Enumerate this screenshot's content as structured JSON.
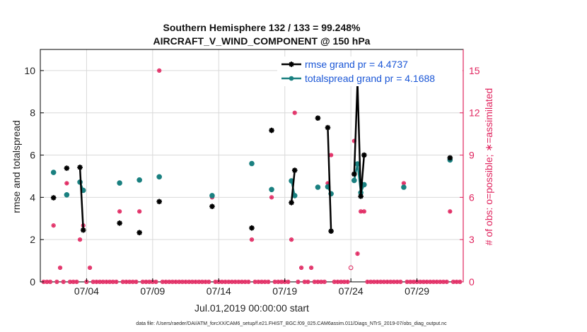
{
  "chart_data": {
    "type": "scatter",
    "title_line1": "Southern Hemisphere 132 / 133 = 99.248%",
    "title_line2": "AIRCRAFT_V_WIND_COMPONENT @ 150 hPa",
    "xlabel": "Jul.01,2019 00:00:00 start",
    "ylabel_left": "rmse and totalspread",
    "ylabel_right": "# of obs: o=possible; ∗=assimilated",
    "footnote": "data file: /Users/raeder/DAI/ATM_forcXX/CAM6_setup/f.e21.FHIST_BGC.f09_025.CAM6assim.011/Diags_NTrS_2019-07/obs_diag_output.nc",
    "x_range_days": [
      0,
      32
    ],
    "x_ticks": [
      {
        "day": 3.5,
        "label": "07/04"
      },
      {
        "day": 8.5,
        "label": "07/09"
      },
      {
        "day": 13.5,
        "label": "07/14"
      },
      {
        "day": 18.5,
        "label": "07/19"
      },
      {
        "day": 23.5,
        "label": "07/24"
      },
      {
        "day": 28.5,
        "label": "07/29"
      }
    ],
    "ylim_left": [
      0,
      11
    ],
    "yticks_left": [
      {
        "value": 0,
        "label": "0"
      },
      {
        "value": 2,
        "label": "2"
      },
      {
        "value": 4,
        "label": "4"
      },
      {
        "value": 6,
        "label": "6"
      },
      {
        "value": 8,
        "label": "8"
      },
      {
        "value": 10,
        "label": "10"
      }
    ],
    "ylim_right": [
      0,
      16.5
    ],
    "yticks_right": [
      {
        "value": 0,
        "label": "0"
      },
      {
        "value": 3,
        "label": "3"
      },
      {
        "value": 6,
        "label": "6"
      },
      {
        "value": 9,
        "label": "9"
      },
      {
        "value": 12,
        "label": "12"
      },
      {
        "value": 15,
        "label": "15"
      }
    ],
    "grid": true,
    "legend_position": "top-right",
    "colors": {
      "rmse": "#000000",
      "totalspread": "#1a8080",
      "obs": "#e0245e",
      "legend_text": "#1a56d6"
    },
    "series": [
      {
        "name": "rmse grand pr = 4.4737",
        "key": "rmse",
        "segments": [
          [
            [
              1.0,
              3.98
            ]
          ],
          [
            [
              2.0,
              5.38
            ]
          ],
          [
            [
              3.0,
              5.42
            ],
            [
              3.25,
              2.45
            ]
          ],
          [
            [
              6.0,
              2.78
            ]
          ],
          [
            [
              7.5,
              2.33
            ]
          ],
          [
            [
              9.0,
              3.8
            ]
          ],
          [
            [
              13.0,
              3.57
            ]
          ],
          [
            [
              16.0,
              2.55
            ]
          ],
          [
            [
              17.5,
              7.17
            ]
          ],
          [
            [
              19.0,
              3.75
            ],
            [
              19.25,
              5.28
            ]
          ],
          [
            [
              21.0,
              7.75
            ]
          ],
          [
            [
              21.75,
              7.3
            ],
            [
              22.0,
              2.4
            ]
          ],
          [
            [
              23.75,
              5.1
            ],
            [
              24.0,
              9.45
            ],
            [
              24.25,
              4.05
            ],
            [
              24.5,
              6.0
            ]
          ],
          [
            [
              31.0,
              5.87
            ]
          ]
        ]
      },
      {
        "name": "totalspread grand pr = 4.1688",
        "key": "totalspread",
        "segments": [
          [
            [
              1.0,
              5.18
            ]
          ],
          [
            [
              2.0,
              4.12
            ]
          ],
          [
            [
              3.0,
              4.72
            ],
            [
              3.25,
              4.33
            ]
          ],
          [
            [
              6.0,
              4.68
            ]
          ],
          [
            [
              7.5,
              4.82
            ]
          ],
          [
            [
              9.0,
              4.97
            ]
          ],
          [
            [
              13.0,
              4.08
            ]
          ],
          [
            [
              16.0,
              5.6
            ]
          ],
          [
            [
              17.5,
              4.37
            ]
          ],
          [
            [
              19.0,
              4.78
            ],
            [
              19.25,
              4.08
            ]
          ],
          [
            [
              21.0,
              4.48
            ]
          ],
          [
            [
              21.75,
              4.5
            ],
            [
              22.0,
              4.17
            ]
          ],
          [
            [
              23.75,
              4.8
            ],
            [
              24.0,
              5.58
            ],
            [
              24.25,
              4.22
            ],
            [
              24.5,
              4.6
            ]
          ],
          [
            [
              27.5,
              4.48
            ]
          ],
          [
            [
              31.0,
              5.77
            ]
          ]
        ]
      }
    ],
    "obs_assimilated": [
      {
        "day": 1.0,
        "count": 4
      },
      {
        "day": 1.5,
        "count": 1
      },
      {
        "day": 2.0,
        "count": 7
      },
      {
        "day": 3.0,
        "count": 3
      },
      {
        "day": 3.25,
        "count": 4
      },
      {
        "day": 3.75,
        "count": 1
      },
      {
        "day": 6.0,
        "count": 5
      },
      {
        "day": 7.5,
        "count": 5
      },
      {
        "day": 9.0,
        "count": 15
      },
      {
        "day": 13.0,
        "count": 6
      },
      {
        "day": 16.0,
        "count": 3
      },
      {
        "day": 17.5,
        "count": 6
      },
      {
        "day": 19.0,
        "count": 3
      },
      {
        "day": 19.25,
        "count": 12
      },
      {
        "day": 19.75,
        "count": 1
      },
      {
        "day": 20.5,
        "count": 1
      },
      {
        "day": 21.75,
        "count": 7
      },
      {
        "day": 22.0,
        "count": 9
      },
      {
        "day": 23.75,
        "count": 10
      },
      {
        "day": 24.0,
        "count": 2
      },
      {
        "day": 24.25,
        "count": 5
      },
      {
        "day": 24.5,
        "count": 5
      },
      {
        "day": 27.5,
        "count": 7
      },
      {
        "day": 31.0,
        "count": 5
      }
    ],
    "obs_possible_only": [
      {
        "day": 23.5,
        "count": 1
      }
    ],
    "obs_zero_days_step": 0.25
  }
}
